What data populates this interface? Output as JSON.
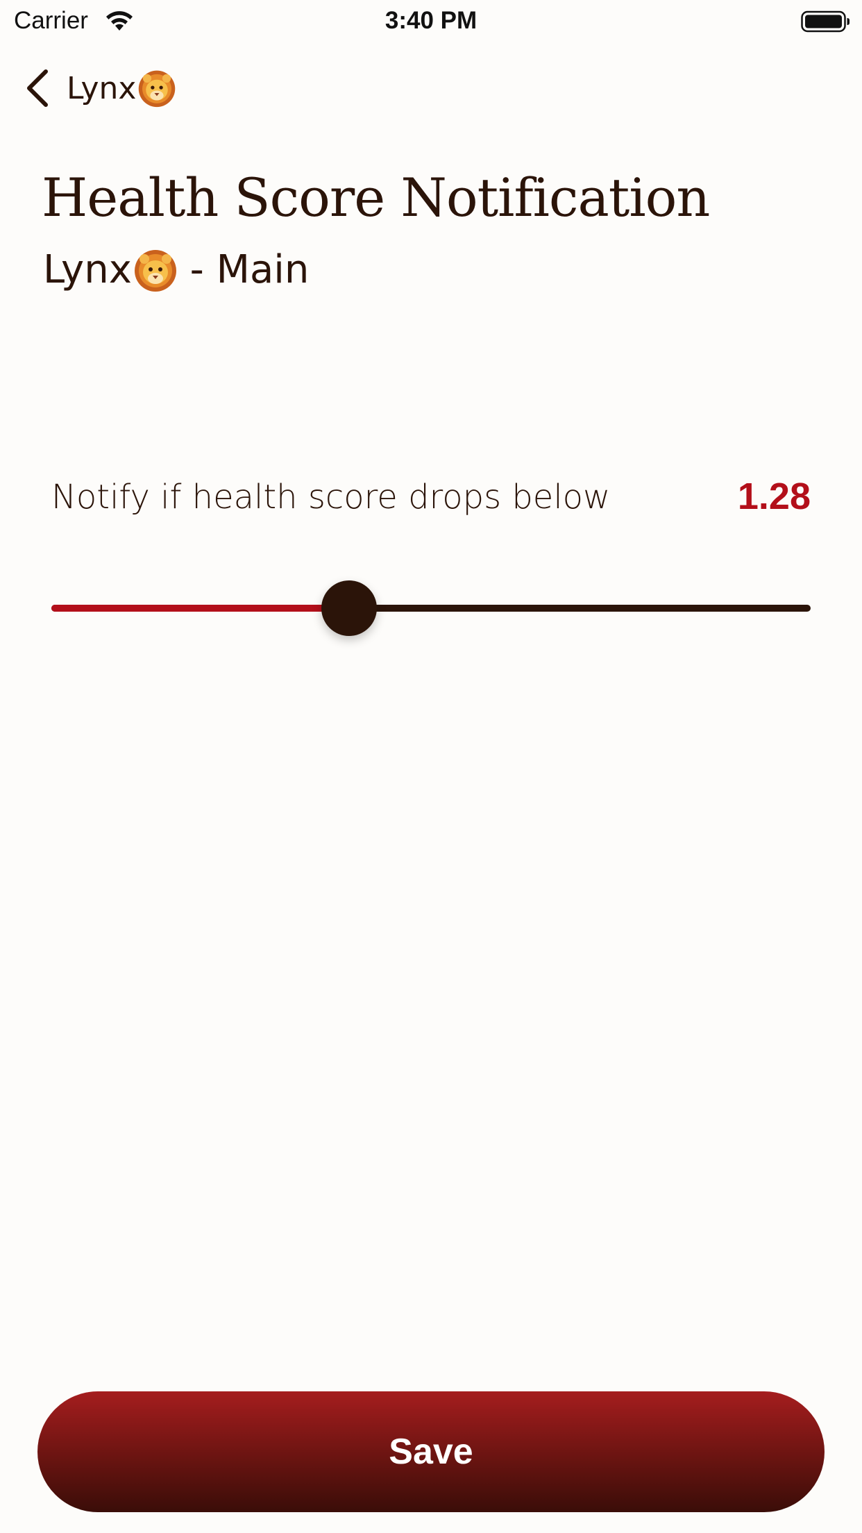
{
  "status_bar": {
    "carrier": "Carrier",
    "time": "3:40 PM"
  },
  "nav": {
    "back_label": "Lynx",
    "back_emoji": "lion-face-icon"
  },
  "header": {
    "title": "Health Score Notification",
    "subtitle_prefix": "Lynx",
    "subtitle_suffix": " - Main"
  },
  "threshold": {
    "label": "Notify if health score drops below",
    "value_text": "1.28",
    "slider_fraction": 0.392
  },
  "actions": {
    "save_label": "Save"
  },
  "colors": {
    "background": "#fdfcfa",
    "text": "#2b1409",
    "accent_red": "#b30f1a",
    "button_top": "#a51d1e",
    "button_bottom": "#3a0d08"
  }
}
